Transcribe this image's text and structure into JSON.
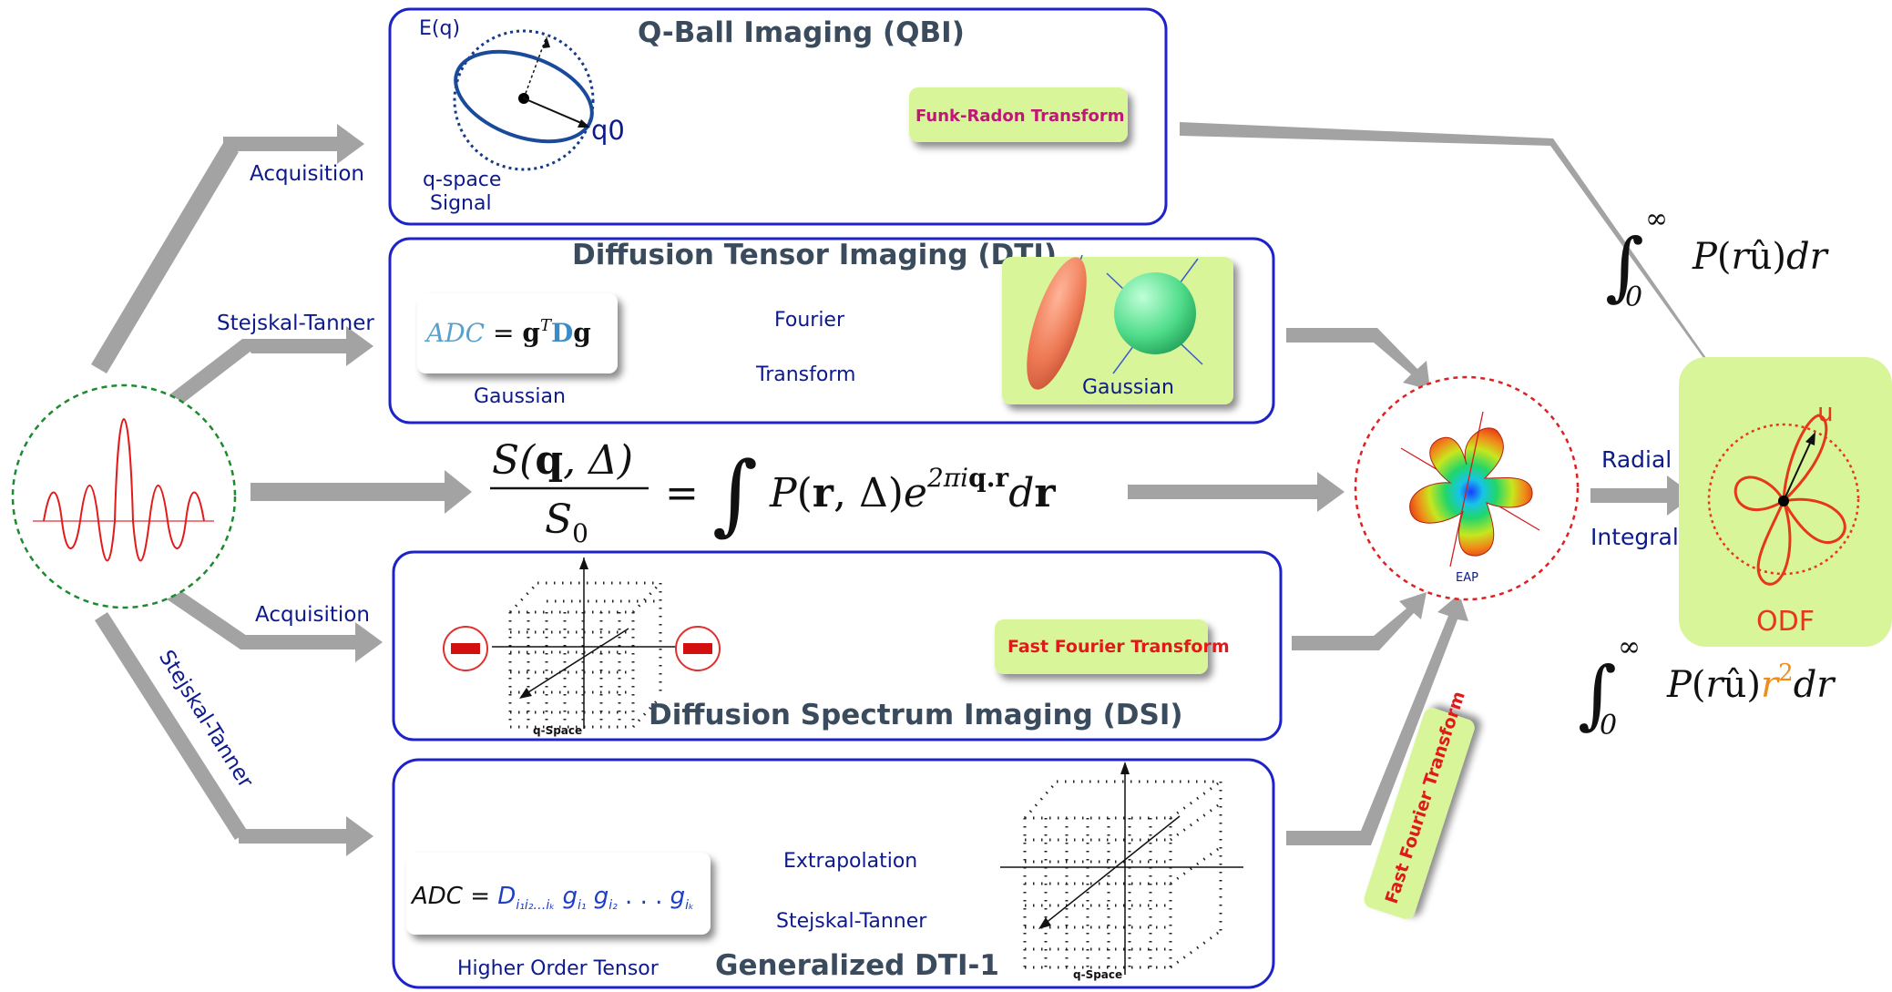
{
  "qbi": {
    "title": "Q-Ball Imaging (QBI)",
    "eq_label": "E(q)",
    "q0": "q0",
    "qspace_line1": "q-space",
    "qspace_line2": "Signal",
    "transform": "Funk-Radon Transform"
  },
  "dti": {
    "title": "Diffusion Tensor Imaging (DTI)",
    "adc": "ADC",
    "gaussian": "Gaussian",
    "fourier": "Fourier",
    "transform": "Transform",
    "glyph_label": "Gaussian"
  },
  "dsi": {
    "title": "Diffusion Spectrum Imaging (DSI)",
    "transform": "Fast Fourier Transform",
    "qspace": "q-Space"
  },
  "gdti": {
    "title": "Generalized DTI-1",
    "adc": "ADC",
    "hot": "Higher Order Tensor",
    "extrapolation": "Extrapolation",
    "stejskal": "Stejskal-Tanner",
    "qspace": "q-Space"
  },
  "fft_tag": "Fast Fourier Transform",
  "eap": {
    "label": "EAP"
  },
  "radial": "Radial",
  "integral": "Integral",
  "odf": {
    "u": "u",
    "label": "ODF"
  },
  "labels": {
    "acq1": "Acquisition",
    "st1": "Stejskal-Tanner",
    "acq2": "Acquisition",
    "st2": "Stejskal-Tanner"
  },
  "colors": {
    "box_border": "#1d23c8",
    "label_text": "#0d1a8c",
    "highlight_green": "#d8f59a",
    "arrow_gray": "#a3a3a3",
    "accent_red": "#e01a1a",
    "accent_magenta": "#c2157a",
    "accent_orange": "#f08c1a"
  }
}
